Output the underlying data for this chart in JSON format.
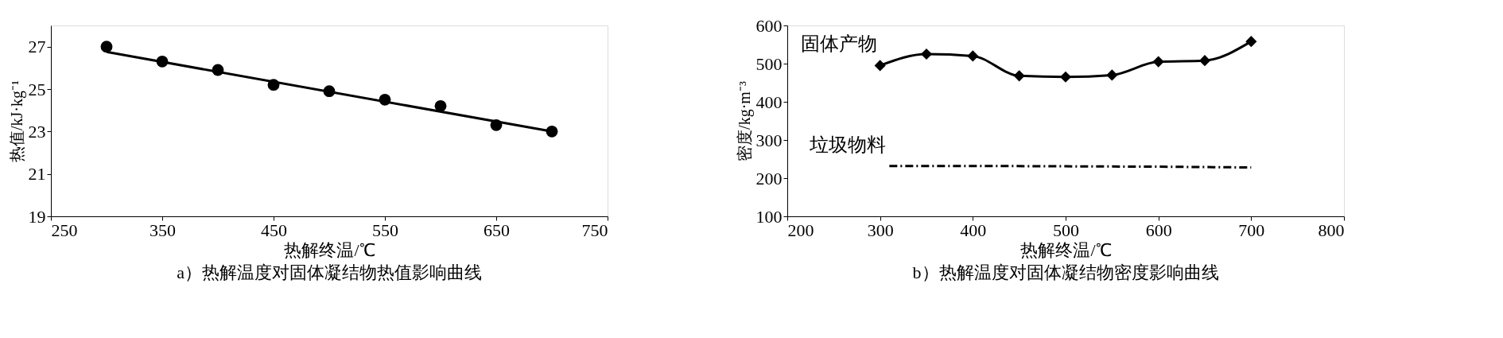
{
  "chart_data": [
    {
      "type": "scatter",
      "title": "a）热解温度对固体凝结物热值影响曲线",
      "xlabel": "热解终温/℃",
      "ylabel": "热值/kJ·kg⁻¹",
      "xlim": [
        250,
        750
      ],
      "xticks": [
        250,
        350,
        450,
        550,
        650,
        750
      ],
      "ylim": [
        19,
        28
      ],
      "yticks": [
        19,
        21,
        23,
        25,
        27
      ],
      "grid": false,
      "legend": false,
      "series": [
        {
          "type": "scatter",
          "marker": "circle",
          "color": "#000000",
          "x": [
            300,
            350,
            400,
            450,
            500,
            550,
            600,
            650,
            700
          ],
          "values": [
            27.0,
            26.3,
            25.9,
            25.2,
            24.9,
            24.5,
            24.2,
            23.3,
            23.0
          ]
        },
        {
          "type": "line",
          "marker": "none",
          "line_style": "solid",
          "color": "#000000",
          "x": [
            300,
            700
          ],
          "values": [
            26.75,
            23.0
          ]
        }
      ]
    },
    {
      "type": "line",
      "title": "b）热解温度对固体凝结物密度影响曲线",
      "xlabel": "热解终温/℃",
      "ylabel": "密度/kg·m⁻³",
      "xlim": [
        200,
        800
      ],
      "xticks": [
        200,
        300,
        400,
        500,
        600,
        700,
        800
      ],
      "ylim": [
        100,
        600
      ],
      "yticks": [
        100,
        200,
        300,
        400,
        500,
        600
      ],
      "grid": false,
      "legend": false,
      "series": [
        {
          "name": "固体产物",
          "marker": "diamond",
          "line_style": "solid",
          "color": "#000000",
          "x": [
            300,
            350,
            400,
            450,
            500,
            550,
            600,
            650,
            700
          ],
          "values": [
            495,
            525,
            520,
            468,
            465,
            470,
            505,
            508,
            558
          ]
        },
        {
          "name": "垃圾物料",
          "marker": "none",
          "line_style": "dashed",
          "color": "#000000",
          "x": [
            310,
            400,
            500,
            600,
            700
          ],
          "values": [
            232,
            232,
            231,
            230,
            228
          ]
        }
      ]
    }
  ]
}
